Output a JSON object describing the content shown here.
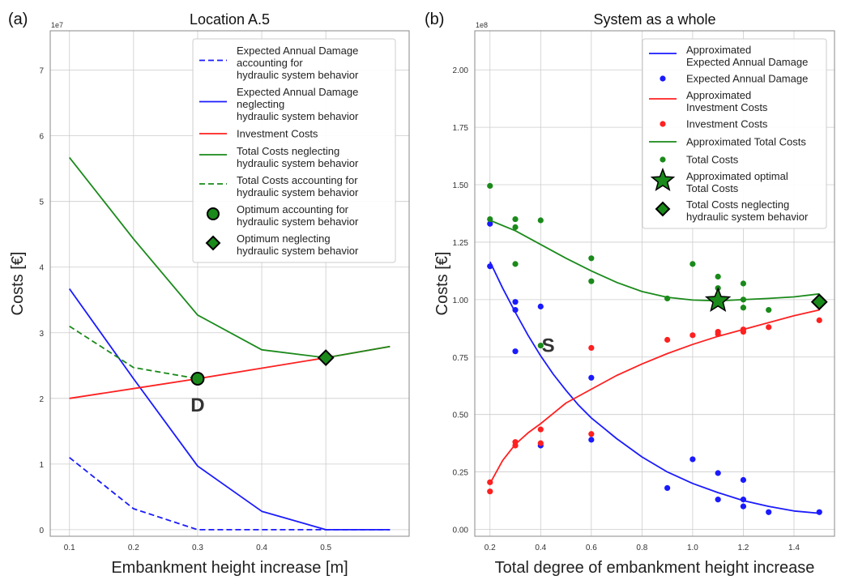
{
  "chart_data": [
    {
      "type": "line",
      "panel_label": "(a)",
      "title": "Location A.5",
      "xlabel": "Embankment height increase [m]",
      "ylabel": "Costs [€]",
      "y_exponent_label": "1e7",
      "xlim": [
        0.07,
        0.63
      ],
      "ylim": [
        -0.1,
        7.6
      ],
      "x_ticks": [
        0.1,
        0.2,
        0.3,
        0.4,
        0.5
      ],
      "x_tick_labels": [
        "0.1",
        "0.2",
        "0.3",
        "0.4",
        "0.5"
      ],
      "y_ticks": [
        0,
        1,
        2,
        3,
        4,
        5,
        6,
        7
      ],
      "y_tick_labels": [
        "0",
        "1",
        "2",
        "3",
        "4",
        "5",
        "6",
        "7"
      ],
      "grid": true,
      "legend_position": "top-right",
      "series": [
        {
          "name": "Expected Annual Damage accounting for hydraulic system behavior",
          "legend_lines": [
            "Expected Annual Damage",
            "accounting for",
            "hydraulic system behavior"
          ],
          "color": "#1a1aff",
          "dash": true,
          "x": [
            0.1,
            0.2,
            0.3,
            0.4,
            0.5,
            0.6
          ],
          "y": [
            1.1,
            0.32,
            0.0,
            0.0,
            0.0,
            0.0
          ]
        },
        {
          "name": "Expected Annual Damage neglecting hydraulic system behavior",
          "legend_lines": [
            "Expected Annual Damage",
            "neglecting",
            "hydraulic system behavior"
          ],
          "color": "#1a1aff",
          "dash": false,
          "x": [
            0.1,
            0.2,
            0.3,
            0.4,
            0.5,
            0.6
          ],
          "y": [
            3.67,
            2.3,
            0.97,
            0.28,
            0.0,
            0.0
          ]
        },
        {
          "name": "Investment Costs",
          "legend_lines": [
            "Investment Costs"
          ],
          "color": "#ff2020",
          "dash": false,
          "x": [
            0.1,
            0.2,
            0.3,
            0.4,
            0.5,
            0.6
          ],
          "y": [
            2.0,
            2.15,
            2.3,
            2.46,
            2.62,
            2.79
          ]
        },
        {
          "name": "Total Costs neglecting hydraulic system behavior",
          "legend_lines": [
            "Total Costs neglecting",
            "hydraulic system behavior"
          ],
          "color": "#1a8a1a",
          "dash": false,
          "x": [
            0.1,
            0.2,
            0.3,
            0.4,
            0.5,
            0.6
          ],
          "y": [
            5.67,
            4.43,
            3.27,
            2.74,
            2.62,
            2.79
          ]
        },
        {
          "name": "Total Costs accounting for hydraulic system behavior",
          "legend_lines": [
            "Total Costs accounting for",
            "hydraulic system behavior"
          ],
          "color": "#1a8a1a",
          "dash": true,
          "x": [
            0.1,
            0.2,
            0.3
          ],
          "y": [
            3.1,
            2.47,
            2.3
          ]
        }
      ],
      "markers": [
        {
          "name": "Optimum accounting for hydraulic system behavior",
          "legend_lines": [
            "Optimum accounting for",
            "hydraulic system behavior"
          ],
          "shape": "circle",
          "color": "#1a8a1a",
          "x": 0.3,
          "y": 2.3
        },
        {
          "name": "Optimum neglecting hydraulic system behavior",
          "legend_lines": [
            "Optimum neglecting",
            "hydraulic system behavior"
          ],
          "shape": "diamond",
          "color": "#1a8a1a",
          "x": 0.5,
          "y": 2.62
        }
      ],
      "annotations": [
        {
          "text": "D",
          "x": 0.3,
          "y": 1.9
        }
      ]
    },
    {
      "type": "scatter",
      "panel_label": "(b)",
      "title": "System as a whole",
      "xlabel": "Total degree of embankment height increase",
      "ylabel": "Costs [€]",
      "y_exponent_label": "1e8",
      "xlim": [
        0.14,
        1.56
      ],
      "ylim": [
        -0.03,
        2.17
      ],
      "x_ticks": [
        0.2,
        0.4,
        0.6,
        0.8,
        1.0,
        1.2,
        1.4
      ],
      "x_tick_labels": [
        "0.2",
        "0.4",
        "0.6",
        "0.8",
        "1.0",
        "1.2",
        "1.4"
      ],
      "y_ticks": [
        0,
        0.25,
        0.5,
        0.75,
        1.0,
        1.25,
        1.5,
        1.75,
        2.0
      ],
      "y_tick_labels": [
        "0.00",
        "0.25",
        "0.50",
        "0.75",
        "1.00",
        "1.25",
        "1.50",
        "1.75",
        "2.00"
      ],
      "grid": true,
      "legend_position": "top-right",
      "series": [
        {
          "name": "Approximated Expected Annual Damage",
          "legend_lines": [
            "Approximated",
            "Expected Annual Damage"
          ],
          "kind": "line",
          "color": "#1a1aff",
          "x": [
            0.2,
            0.25,
            0.3,
            0.35,
            0.4,
            0.45,
            0.5,
            0.55,
            0.6,
            0.65,
            0.7,
            0.8,
            0.9,
            1.0,
            1.1,
            1.2,
            1.3,
            1.4,
            1.5
          ],
          "y": [
            1.165,
            1.05,
            0.945,
            0.845,
            0.755,
            0.675,
            0.605,
            0.54,
            0.485,
            0.44,
            0.395,
            0.315,
            0.25,
            0.2,
            0.16,
            0.125,
            0.1,
            0.08,
            0.07
          ]
        },
        {
          "name": "Expected Annual Damage",
          "legend_lines": [
            "Expected Annual Damage"
          ],
          "kind": "scatter",
          "color": "#1a1aff",
          "x": [
            0.2,
            0.2,
            0.3,
            0.3,
            0.3,
            0.4,
            0.4,
            0.6,
            0.6,
            0.9,
            1.0,
            1.1,
            1.1,
            1.2,
            1.2,
            1.2,
            1.3,
            1.5
          ],
          "y": [
            1.33,
            1.145,
            0.99,
            0.955,
            0.775,
            0.97,
            0.365,
            0.66,
            0.39,
            0.18,
            0.305,
            0.245,
            0.13,
            0.215,
            0.13,
            0.1,
            0.075,
            0.075
          ]
        },
        {
          "name": "Approximated Investment Costs",
          "legend_lines": [
            "Approximated",
            "Investment Costs"
          ],
          "kind": "line",
          "color": "#ff2020",
          "x": [
            0.2,
            0.25,
            0.3,
            0.35,
            0.4,
            0.45,
            0.5,
            0.6,
            0.7,
            0.8,
            0.9,
            1.0,
            1.1,
            1.2,
            1.3,
            1.4,
            1.5
          ],
          "y": [
            0.2,
            0.3,
            0.37,
            0.42,
            0.46,
            0.505,
            0.55,
            0.61,
            0.67,
            0.72,
            0.765,
            0.805,
            0.84,
            0.87,
            0.9,
            0.93,
            0.955
          ]
        },
        {
          "name": "Investment Costs",
          "legend_lines": [
            "Investment Costs"
          ],
          "kind": "scatter",
          "color": "#ff2020",
          "x": [
            0.2,
            0.2,
            0.3,
            0.3,
            0.4,
            0.4,
            0.6,
            0.6,
            0.9,
            1.0,
            1.1,
            1.1,
            1.2,
            1.2,
            1.3,
            1.5
          ],
          "y": [
            0.205,
            0.165,
            0.38,
            0.365,
            0.435,
            0.375,
            0.79,
            0.415,
            0.825,
            0.845,
            0.86,
            0.85,
            0.87,
            0.86,
            0.88,
            0.91
          ]
        },
        {
          "name": "Approximated Total Costs",
          "legend_lines": [
            "Approximated Total Costs"
          ],
          "kind": "line",
          "color": "#1a8a1a",
          "x": [
            0.2,
            0.3,
            0.4,
            0.5,
            0.6,
            0.7,
            0.8,
            0.9,
            1.0,
            1.1,
            1.2,
            1.3,
            1.4,
            1.5
          ],
          "y": [
            1.345,
            1.3,
            1.24,
            1.18,
            1.125,
            1.075,
            1.035,
            1.01,
            0.998,
            0.995,
            1.0,
            1.005,
            1.012,
            1.025
          ]
        },
        {
          "name": "Total Costs",
          "legend_lines": [
            "Total Costs"
          ],
          "kind": "scatter",
          "color": "#1a8a1a",
          "x": [
            0.2,
            0.2,
            0.3,
            0.3,
            0.3,
            0.4,
            0.4,
            0.6,
            0.6,
            0.9,
            1.0,
            1.1,
            1.1,
            1.2,
            1.2,
            1.2,
            1.3
          ],
          "y": [
            1.495,
            1.35,
            1.35,
            1.315,
            1.155,
            1.345,
            0.8,
            1.18,
            1.08,
            1.005,
            1.155,
            1.1,
            1.05,
            1.07,
            1.0,
            0.965,
            0.955
          ]
        }
      ],
      "markers": [
        {
          "name": "Approximated optimal Total Costs",
          "legend_lines": [
            "Approximated optimal",
            "Total Costs"
          ],
          "shape": "star",
          "color": "#1a8a1a",
          "x": 1.1,
          "y": 0.995
        },
        {
          "name": "Total Costs neglecting hydraulic system behavior",
          "legend_lines": [
            "Total Costs neglecting",
            "hydraulic system behavior"
          ],
          "shape": "diamond",
          "color": "#1a8a1a",
          "x": 1.5,
          "y": 0.99
        }
      ],
      "annotations": [
        {
          "text": "S",
          "x": 0.43,
          "y": 0.8
        }
      ]
    }
  ]
}
